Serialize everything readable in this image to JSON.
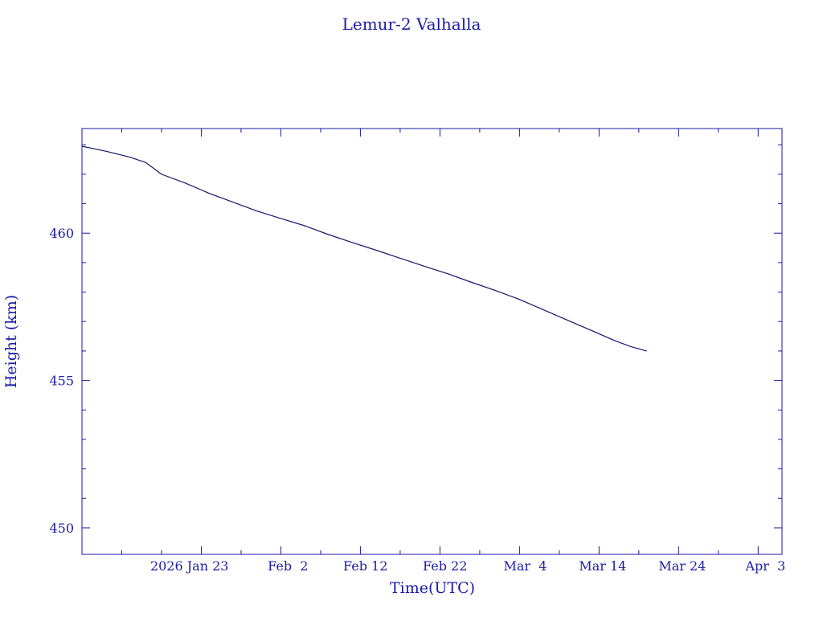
{
  "chart_data": {
    "type": "line",
    "title": "Lemur-2 Valhalla",
    "xlabel": "Time(UTC)",
    "ylabel": "Height (km)",
    "x_type": "date",
    "xlim": [
      "2026-01-08",
      "2026-04-06"
    ],
    "ylim": [
      449.1,
      463.55
    ],
    "grid": false,
    "x_ticks": [
      {
        "label": "2026 Jan 23",
        "value": "2026-01-23"
      },
      {
        "label": "Feb  2",
        "value": "2026-02-02"
      },
      {
        "label": "Feb 12",
        "value": "2026-02-12"
      },
      {
        "label": "Feb 22",
        "value": "2026-02-22"
      },
      {
        "label": "Mar  4",
        "value": "2026-03-04"
      },
      {
        "label": "Mar 14",
        "value": "2026-03-14"
      },
      {
        "label": "Mar 24",
        "value": "2026-03-24"
      },
      {
        "label": "Apr  3",
        "value": "2026-04-03"
      }
    ],
    "y_ticks": [
      {
        "label": "450",
        "value": 450
      },
      {
        "label": "455",
        "value": 455
      },
      {
        "label": "460",
        "value": 460
      }
    ],
    "series": [
      {
        "points": [
          {
            "x": "2026-01-08",
            "y": 462.95
          },
          {
            "x": "2026-01-11",
            "y": 462.78
          },
          {
            "x": "2026-01-14",
            "y": 462.58
          },
          {
            "x": "2026-01-16",
            "y": 462.4
          },
          {
            "x": "2026-01-17",
            "y": 462.2
          },
          {
            "x": "2026-01-18",
            "y": 462.0
          },
          {
            "x": "2026-01-21",
            "y": 461.7
          },
          {
            "x": "2026-01-24",
            "y": 461.35
          },
          {
            "x": "2026-01-27",
            "y": 461.05
          },
          {
            "x": "2026-01-30",
            "y": 460.75
          },
          {
            "x": "2026-02-02",
            "y": 460.5
          },
          {
            "x": "2026-02-05",
            "y": 460.25
          },
          {
            "x": "2026-02-08",
            "y": 459.95
          },
          {
            "x": "2026-02-11",
            "y": 459.68
          },
          {
            "x": "2026-02-14",
            "y": 459.42
          },
          {
            "x": "2026-02-17",
            "y": 459.15
          },
          {
            "x": "2026-02-20",
            "y": 458.88
          },
          {
            "x": "2026-02-23",
            "y": 458.62
          },
          {
            "x": "2026-02-26",
            "y": 458.33
          },
          {
            "x": "2026-03-01",
            "y": 458.05
          },
          {
            "x": "2026-03-04",
            "y": 457.75
          },
          {
            "x": "2026-03-07",
            "y": 457.4
          },
          {
            "x": "2026-03-10",
            "y": 457.05
          },
          {
            "x": "2026-03-13",
            "y": 456.7
          },
          {
            "x": "2026-03-16",
            "y": 456.35
          },
          {
            "x": "2026-03-18",
            "y": 456.15
          },
          {
            "x": "2026-03-20",
            "y": 456.0
          }
        ]
      }
    ]
  },
  "colors": {
    "ink": "#1a1aa6",
    "line": "#14146e",
    "background": "#ffffff"
  }
}
